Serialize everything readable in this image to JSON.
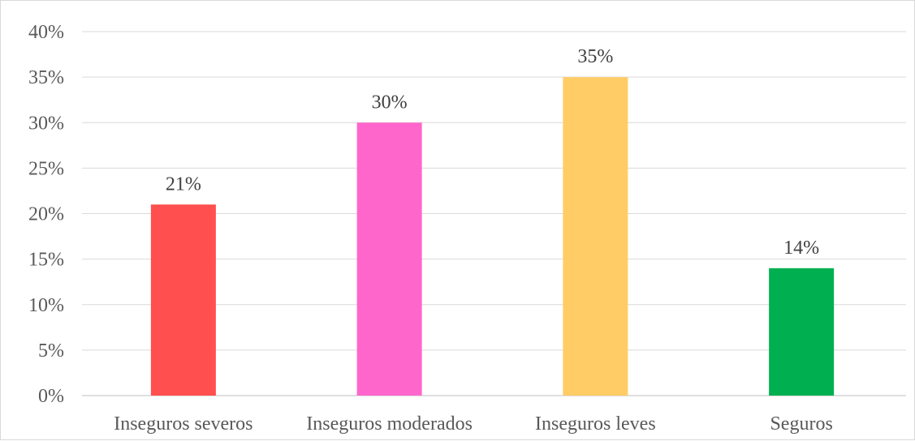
{
  "chart_data": {
    "type": "bar",
    "categories": [
      "Inseguros severos",
      "Inseguros moderados",
      "Inseguros leves",
      "Seguros"
    ],
    "values": [
      21,
      30,
      35,
      14
    ],
    "data_labels": [
      "21%",
      "30%",
      "35%",
      "14%"
    ],
    "colors": [
      "#ff4f4f",
      "#ff66cc",
      "#ffcc66",
      "#00b050"
    ],
    "ylim": [
      0,
      40
    ],
    "y_ticks": [
      0,
      5,
      10,
      15,
      20,
      25,
      30,
      35,
      40
    ],
    "y_tick_labels": [
      "0%",
      "5%",
      "10%",
      "15%",
      "20%",
      "25%",
      "30%",
      "35%",
      "40%"
    ],
    "title": "",
    "xlabel": "",
    "ylabel": "",
    "grid": true,
    "legend": "none"
  }
}
